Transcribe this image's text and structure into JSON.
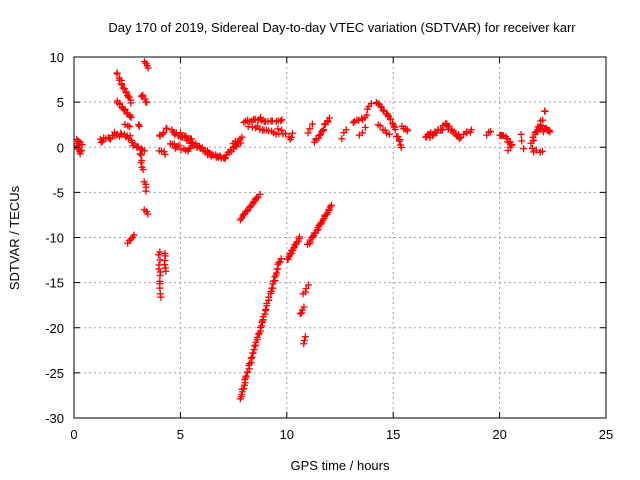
{
  "chart_data": {
    "type": "scatter",
    "title": "Day 170 of 2019, Sidereal Day-to-day VTEC variation (SDTVAR) for receiver karr",
    "xlabel": "GPS time / hours",
    "ylabel": "SDTVAR / TECUs",
    "xlim": [
      0,
      25
    ],
    "ylim": [
      -30,
      10
    ],
    "xticks": [
      "0",
      "5",
      "10",
      "15",
      "20",
      "25"
    ],
    "yticks": [
      "10",
      "5",
      "0",
      "-5",
      "-10",
      "-15",
      "-20",
      "-25",
      "-30"
    ],
    "xtick_values": [
      0,
      5,
      10,
      15,
      20,
      25
    ],
    "ytick_values": [
      10,
      5,
      0,
      -5,
      -10,
      -15,
      -20,
      -25,
      -30
    ],
    "grid": true,
    "marker": "+",
    "color": "#ff0000",
    "series": [
      {
        "name": "SDTVAR",
        "segments": [
          {
            "x0": 0.1,
            "y0": 0.2,
            "x1": 0.35,
            "y1": -0.6,
            "n": 8,
            "jit": 0.6
          },
          {
            "x0": 0.1,
            "y0": 0.8,
            "x1": 0.35,
            "y1": 0.4,
            "n": 5,
            "jit": 0.3
          },
          {
            "x0": 1.2,
            "y0": 0.8,
            "x1": 1.9,
            "y1": 1.2,
            "n": 10,
            "jit": 0.6
          },
          {
            "x0": 1.9,
            "y0": 1.6,
            "x1": 2.7,
            "y1": 1.0,
            "n": 12,
            "jit": 0.5
          },
          {
            "x0": 2.7,
            "y0": 0.5,
            "x1": 3.3,
            "y1": -0.5,
            "n": 8,
            "jit": 0.4
          },
          {
            "x0": 2.0,
            "y0": 8.2,
            "x1": 2.7,
            "y1": 5.0,
            "n": 16,
            "jit": 0.3
          },
          {
            "x0": 2.0,
            "y0": 5.2,
            "x1": 2.7,
            "y1": 3.2,
            "n": 14,
            "jit": 0.3
          },
          {
            "x0": 2.4,
            "y0": 2.6,
            "x1": 2.6,
            "y1": 2.2,
            "n": 3,
            "jit": 0.2
          },
          {
            "x0": 3.0,
            "y0": 2.5,
            "x1": 3.1,
            "y1": 2.3,
            "n": 2,
            "jit": 0.2
          },
          {
            "x0": 3.15,
            "y0": 5.8,
            "x1": 3.45,
            "y1": 5.0,
            "n": 6,
            "jit": 0.3
          },
          {
            "x0": 3.3,
            "y0": 9.4,
            "x1": 3.5,
            "y1": 8.8,
            "n": 4,
            "jit": 0.2
          },
          {
            "x0": 3.1,
            "y0": -0.6,
            "x1": 3.25,
            "y1": -2.6,
            "n": 6,
            "jit": 0.3
          },
          {
            "x0": 3.3,
            "y0": -3.8,
            "x1": 3.4,
            "y1": -4.8,
            "n": 4,
            "jit": 0.2
          },
          {
            "x0": 3.3,
            "y0": -7.0,
            "x1": 3.45,
            "y1": -7.4,
            "n": 3,
            "jit": 0.2
          },
          {
            "x0": 2.55,
            "y0": -10.6,
            "x1": 2.85,
            "y1": -9.8,
            "n": 5,
            "jit": 0.2
          },
          {
            "x0": 4.0,
            "y0": -11.5,
            "x1": 4.05,
            "y1": -16.7,
            "n": 12,
            "jit": 0.3
          },
          {
            "x0": 4.25,
            "y0": -11.8,
            "x1": 4.3,
            "y1": -13.6,
            "n": 6,
            "jit": 0.3
          },
          {
            "x0": 4.0,
            "y0": 1.2,
            "x1": 4.4,
            "y1": 2.3,
            "n": 6,
            "jit": 0.5
          },
          {
            "x0": 4.0,
            "y0": -0.3,
            "x1": 4.3,
            "y1": -0.8,
            "n": 4,
            "jit": 0.3
          },
          {
            "x0": 4.6,
            "y0": 1.8,
            "x1": 5.5,
            "y1": 0.8,
            "n": 18,
            "jit": 0.6
          },
          {
            "x0": 4.5,
            "y0": 0.3,
            "x1": 5.5,
            "y1": -0.3,
            "n": 12,
            "jit": 0.5
          },
          {
            "x0": 5.5,
            "y0": 0.5,
            "x1": 6.3,
            "y1": -0.6,
            "n": 16,
            "jit": 0.4
          },
          {
            "x0": 6.3,
            "y0": -0.8,
            "x1": 7.1,
            "y1": -1.2,
            "n": 16,
            "jit": 0.3
          },
          {
            "x0": 7.1,
            "y0": -1.0,
            "x1": 7.8,
            "y1": 0.5,
            "n": 12,
            "jit": 0.5
          },
          {
            "x0": 7.5,
            "y0": 0.5,
            "x1": 7.9,
            "y1": 1.0,
            "n": 6,
            "jit": 0.4
          },
          {
            "x0": 7.8,
            "y0": -8.0,
            "x1": 8.7,
            "y1": -5.3,
            "n": 18,
            "jit": 0.2
          },
          {
            "x0": 7.8,
            "y0": -28.0,
            "x1": 9.7,
            "y1": -12.3,
            "n": 60,
            "jit": 0.3
          },
          {
            "x0": 8.0,
            "y0": 2.8,
            "x1": 8.8,
            "y1": 3.2,
            "n": 10,
            "jit": 0.3
          },
          {
            "x0": 8.8,
            "y0": 2.9,
            "x1": 9.8,
            "y1": 3.0,
            "n": 10,
            "jit": 0.3
          },
          {
            "x0": 8.2,
            "y0": 2.3,
            "x1": 8.5,
            "y1": 2.2,
            "n": 3,
            "jit": 0.2
          },
          {
            "x0": 8.6,
            "y0": 2.2,
            "x1": 9.6,
            "y1": 1.5,
            "n": 10,
            "jit": 0.3
          },
          {
            "x0": 9.6,
            "y0": 2.0,
            "x1": 10.1,
            "y1": 1.2,
            "n": 5,
            "jit": 0.3
          },
          {
            "x0": 10.2,
            "y0": 0.8,
            "x1": 10.3,
            "y1": 1.5,
            "n": 3,
            "jit": 0.2
          },
          {
            "x0": 10.0,
            "y0": -12.5,
            "x1": 10.6,
            "y1": -10.0,
            "n": 16,
            "jit": 0.2
          },
          {
            "x0": 10.6,
            "y0": -18.5,
            "x1": 10.8,
            "y1": -17.8,
            "n": 4,
            "jit": 0.2
          },
          {
            "x0": 10.8,
            "y0": -16.3,
            "x1": 11.0,
            "y1": -15.2,
            "n": 4,
            "jit": 0.2
          },
          {
            "x0": 10.8,
            "y0": -21.8,
            "x1": 10.9,
            "y1": -21.0,
            "n": 3,
            "jit": 0.2
          },
          {
            "x0": 11.0,
            "y0": -10.8,
            "x1": 12.1,
            "y1": -6.5,
            "n": 26,
            "jit": 0.2
          },
          {
            "x0": 11.3,
            "y0": 0.5,
            "x1": 12.0,
            "y1": 3.2,
            "n": 14,
            "jit": 0.5
          },
          {
            "x0": 11.0,
            "y0": 1.5,
            "x1": 11.2,
            "y1": 2.5,
            "n": 3,
            "jit": 0.3
          },
          {
            "x0": 12.6,
            "y0": 1.0,
            "x1": 12.8,
            "y1": 2.0,
            "n": 3,
            "jit": 0.3
          },
          {
            "x0": 13.1,
            "y0": 2.8,
            "x1": 13.8,
            "y1": 3.4,
            "n": 8,
            "jit": 0.4
          },
          {
            "x0": 13.4,
            "y0": 1.2,
            "x1": 13.7,
            "y1": 2.2,
            "n": 3,
            "jit": 0.3
          },
          {
            "x0": 13.8,
            "y0": 4.2,
            "x1": 14.0,
            "y1": 4.8,
            "n": 3,
            "jit": 0.2
          },
          {
            "x0": 14.2,
            "y0": 5.0,
            "x1": 14.8,
            "y1": 3.5,
            "n": 10,
            "jit": 0.3
          },
          {
            "x0": 14.3,
            "y0": 2.5,
            "x1": 14.8,
            "y1": 1.5,
            "n": 6,
            "jit": 0.4
          },
          {
            "x0": 14.8,
            "y0": 3.5,
            "x1": 15.4,
            "y1": 0.2,
            "n": 14,
            "jit": 0.6
          },
          {
            "x0": 15.4,
            "y0": 2.2,
            "x1": 15.7,
            "y1": 1.8,
            "n": 5,
            "jit": 0.4
          },
          {
            "x0": 16.5,
            "y0": 1.0,
            "x1": 17.5,
            "y1": 2.5,
            "n": 18,
            "jit": 0.7
          },
          {
            "x0": 17.5,
            "y0": 2.5,
            "x1": 18.2,
            "y1": 1.2,
            "n": 14,
            "jit": 0.7
          },
          {
            "x0": 18.3,
            "y0": 1.5,
            "x1": 18.7,
            "y1": 2.0,
            "n": 5,
            "jit": 0.4
          },
          {
            "x0": 19.4,
            "y0": 1.3,
            "x1": 19.6,
            "y1": 1.8,
            "n": 3,
            "jit": 0.3
          },
          {
            "x0": 20.0,
            "y0": 1.5,
            "x1": 20.6,
            "y1": 0.5,
            "n": 10,
            "jit": 0.7
          },
          {
            "x0": 20.4,
            "y0": -0.3,
            "x1": 20.6,
            "y1": 0.2,
            "n": 3,
            "jit": 0.3
          },
          {
            "x0": 21.0,
            "y0": 1.5,
            "x1": 21.1,
            "y1": -0.2,
            "n": 3,
            "jit": 0.3
          },
          {
            "x0": 21.5,
            "y0": 0.5,
            "x1": 22.0,
            "y1": 2.8,
            "n": 14,
            "jit": 0.7
          },
          {
            "x0": 21.5,
            "y0": -0.3,
            "x1": 22.0,
            "y1": -0.5,
            "n": 5,
            "jit": 0.5
          },
          {
            "x0": 22.0,
            "y0": 2.0,
            "x1": 22.4,
            "y1": 1.8,
            "n": 10,
            "jit": 0.7
          },
          {
            "x0": 22.1,
            "y0": 4.0,
            "x1": 22.15,
            "y1": 4.0,
            "n": 2,
            "jit": 0.1
          }
        ]
      }
    ]
  }
}
